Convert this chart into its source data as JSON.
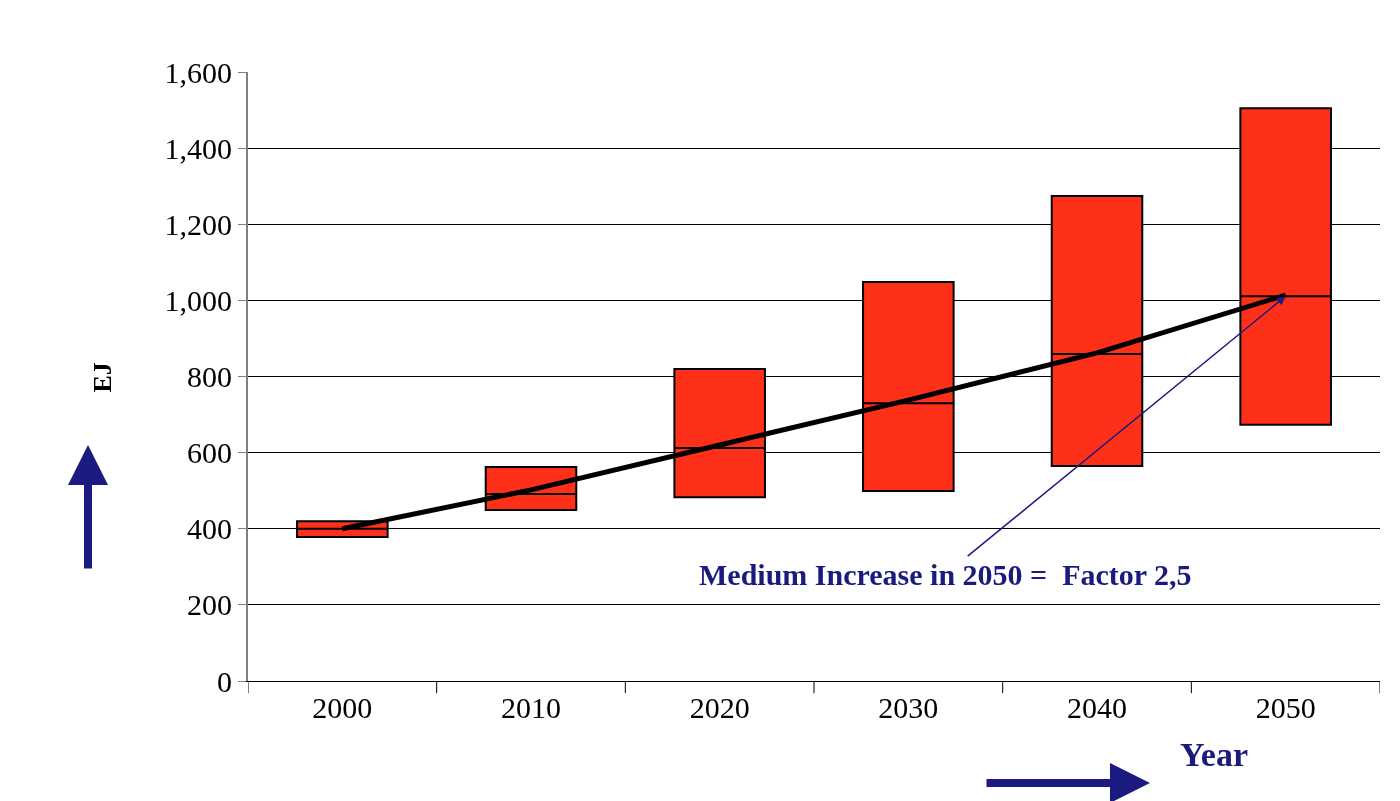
{
  "chart_data": {
    "type": "box",
    "categories": [
      "2000",
      "2010",
      "2020",
      "2030",
      "2040",
      "2050"
    ],
    "series": [
      {
        "type": "box",
        "color": "#ff3019",
        "boxes": [
          {
            "low": 378,
            "q1": 378,
            "median": 400,
            "q3": 420,
            "high": 420
          },
          {
            "low": 449,
            "q1": 449,
            "median": 491,
            "q3": 562,
            "high": 562
          },
          {
            "low": 483,
            "q1": 483,
            "median": 612,
            "q3": 820,
            "high": 820
          },
          {
            "low": 499,
            "q1": 499,
            "median": 730,
            "q3": 1048,
            "high": 1048
          },
          {
            "low": 565,
            "q1": 565,
            "median": 859,
            "q3": 1274,
            "high": 1274
          },
          {
            "low": 673,
            "q1": 673,
            "median": 1011,
            "q3": 1505,
            "high": 1505
          }
        ]
      },
      {
        "type": "line",
        "color": "#000000",
        "values": [
          400,
          502,
          620,
          738,
          862,
          1014
        ]
      }
    ],
    "xlabel": "Year",
    "ylabel": "EJ",
    "ylim": [
      0,
      1600
    ],
    "yticks": [
      0,
      200,
      400,
      600,
      800,
      {
        "value": 1000,
        "label": "1,000"
      },
      {
        "value": 1200,
        "label": "1,200"
      },
      {
        "value": 1400,
        "label": "1,400"
      },
      {
        "value": 1600,
        "label": "1,600"
      }
    ],
    "grid": "y",
    "marker": "none",
    "line_style": "solid",
    "annotations": [
      {
        "text": "Medium Increase in 2050 =  Factor 2,5",
        "x": "2050",
        "y": 1011
      }
    ]
  }
}
